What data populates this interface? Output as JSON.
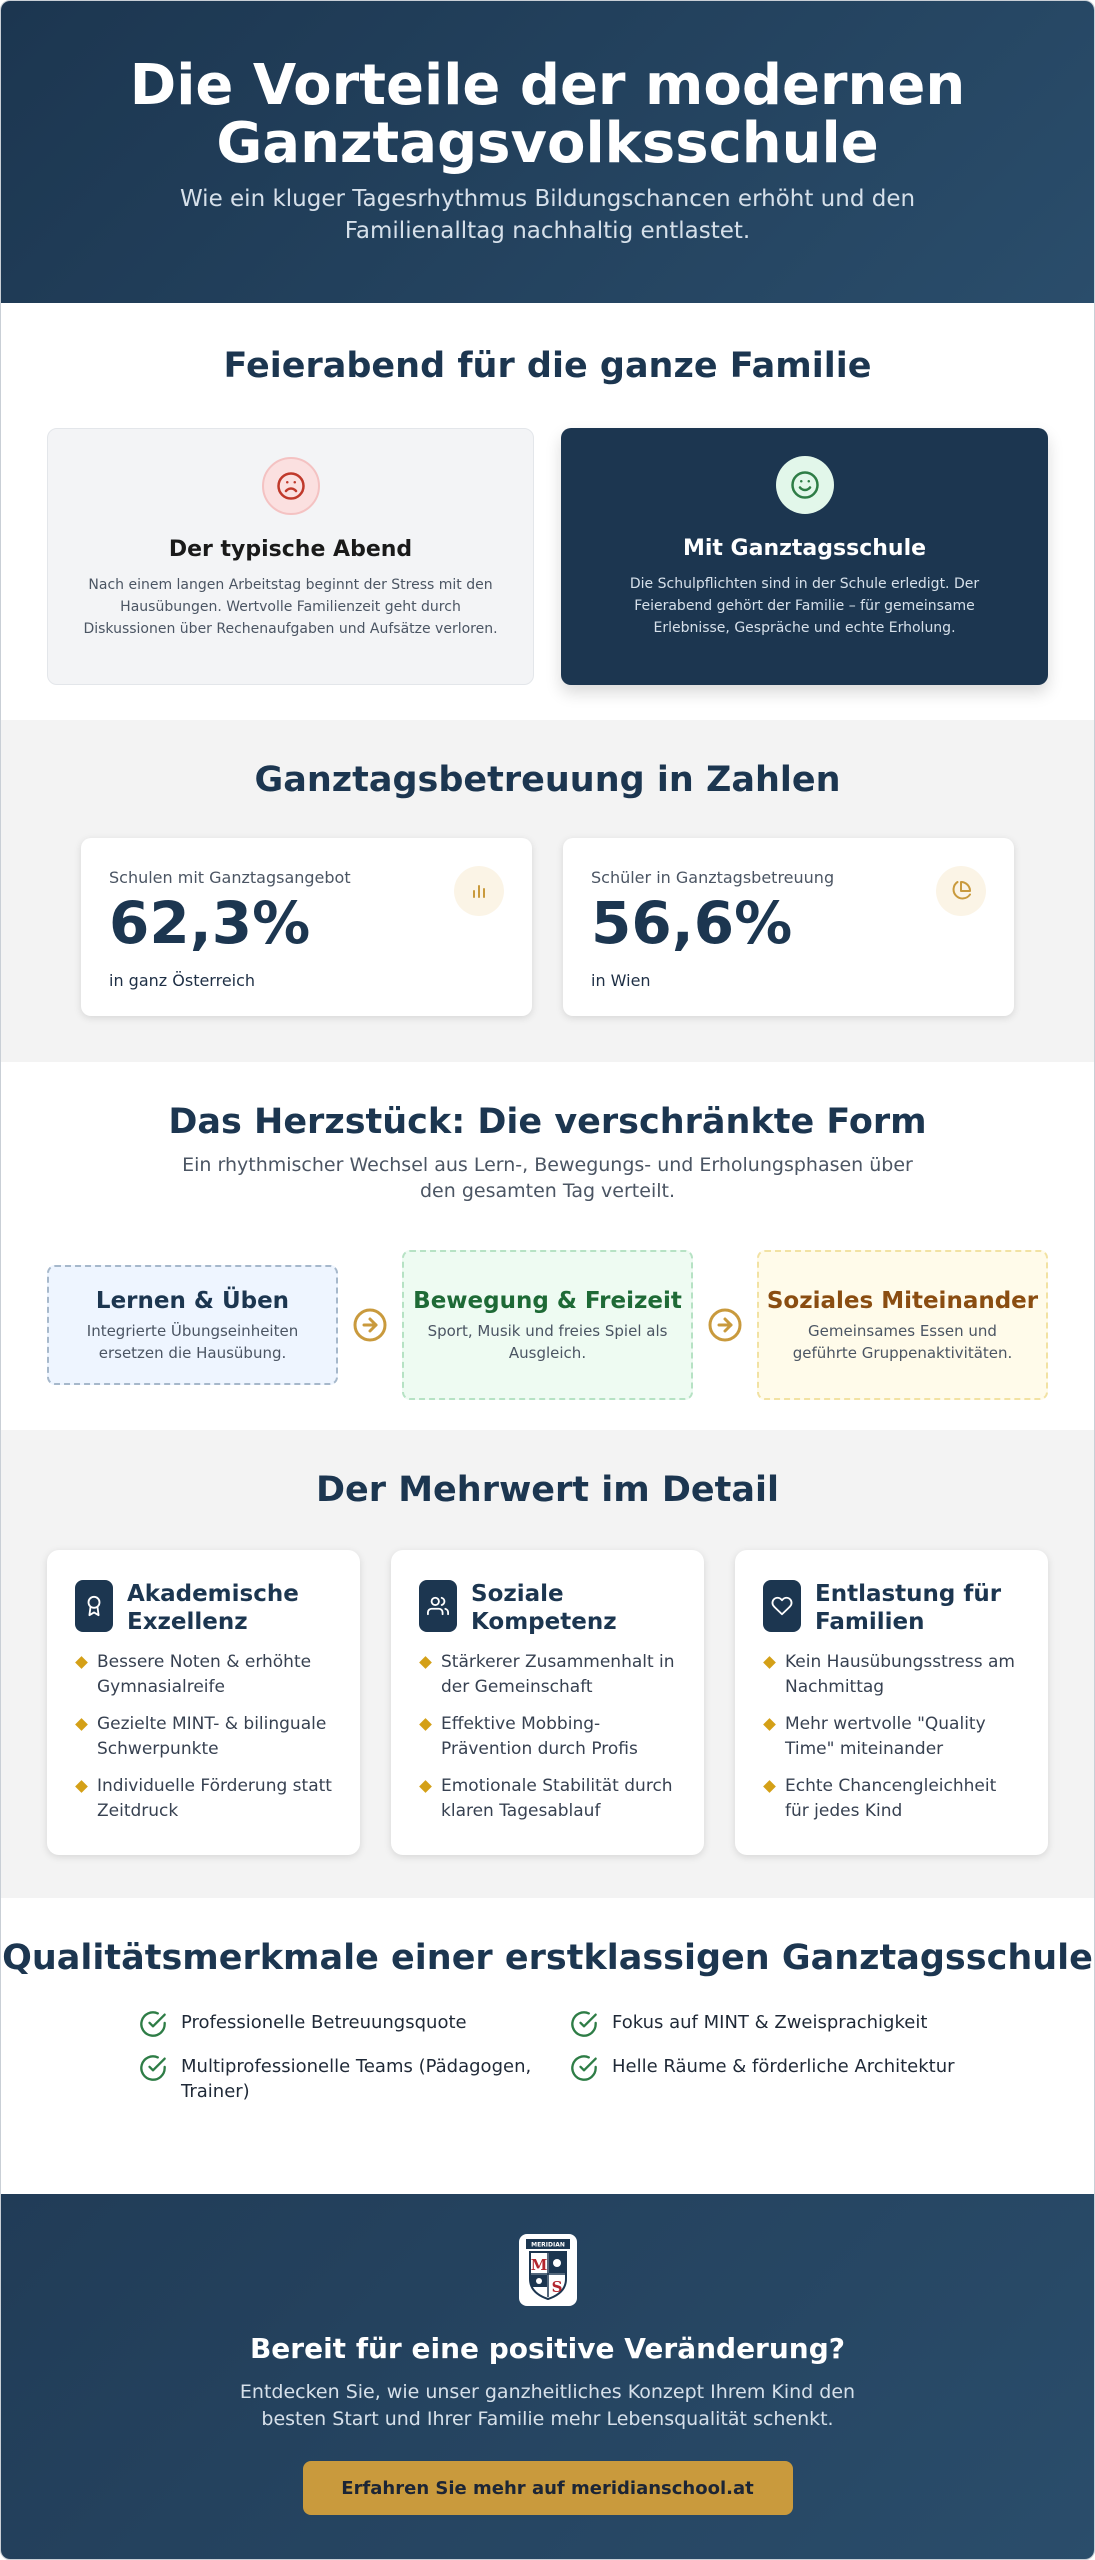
{
  "hero": {
    "title": "Die Vorteile der modernen Ganztagsvolksschule",
    "subtitle": "Wie ein kluger Tagesrhythmus Bildungschancen erhöht und den Familienalltag nachhaltig entlastet."
  },
  "family": {
    "title": "Feierabend für die ganze Familie",
    "cards": [
      {
        "icon": "sad-face-icon",
        "title": "Der typische Abend",
        "text": "Nach einem langen Arbeitstag beginnt der Stress mit den Hausübungen. Wertvolle Familienzeit geht durch Diskussionen über Rechenaufgaben und Aufsätze verloren."
      },
      {
        "icon": "happy-face-icon",
        "title": "Mit Ganztagsschule",
        "text": "Die Schulpflichten sind in der Schule erledigt. Der Feierabend gehört der Familie – für gemeinsame Erlebnisse, Gespräche und echte Erholung."
      }
    ]
  },
  "stats": {
    "title": "Ganztagsbetreuung in Zahlen",
    "cards": [
      {
        "label": "Schulen mit Ganztagsangebot",
        "value": "62,3%",
        "sub": "in ganz Österreich",
        "icon": "bar-chart-icon"
      },
      {
        "label": "Schüler in Ganztagsbetreuung",
        "value": "56,6%",
        "sub": "in Wien",
        "icon": "pie-chart-icon"
      }
    ]
  },
  "heart": {
    "title": "Das Herzstück: Die verschränkte Form",
    "lead": "Ein rhythmischer Wechsel aus Lern-, Bewegungs- und Erholungsphasen über den gesamten Tag verteilt.",
    "steps": [
      {
        "title": "Lernen & Üben",
        "text": "Integrierte Übungseinheiten ersetzen die Hausübung."
      },
      {
        "title": "Bewegung & Freizeit",
        "text": "Sport, Musik und freies Spiel als Ausgleich."
      },
      {
        "title": "Soziales Miteinander",
        "text": "Gemeinsames Essen und geführte Gruppenaktivitäten."
      }
    ]
  },
  "detail": {
    "title": "Der Mehrwert im Detail",
    "cards": [
      {
        "icon": "award-icon",
        "title": "Akademische Exzellenz",
        "items": [
          "Bessere Noten & erhöhte Gymnasialreife",
          "Gezielte MINT- & bilinguale Schwerpunkte",
          "Individuelle Förderung statt Zeitdruck"
        ]
      },
      {
        "icon": "users-icon",
        "title": "Soziale Kompetenz",
        "items": [
          "Stärkerer Zusammenhalt in der Gemeinschaft",
          "Effektive Mobbing-Prävention durch Profis",
          "Emotionale Stabilität durch klaren Tagesablauf"
        ]
      },
      {
        "icon": "heart-icon",
        "title": "Entlastung für Familien",
        "items": [
          "Kein Hausübungsstress am Nachmittag",
          "Mehr wertvolle \"Quality Time\" miteinander",
          "Echte Chancengleichheit für jedes Kind"
        ]
      }
    ]
  },
  "quality": {
    "title": "Qualitätsmerkmale einer erstklassigen Ganztagsschule",
    "items": [
      "Professionelle Betreuungsquote",
      "Fokus auf MINT & Zweisprachigkeit",
      "Multiprofessionelle Teams (Pädagogen, Trainer)",
      "Helle Räume & förderliche Architektur"
    ]
  },
  "cta": {
    "logo_text": "MERIDIAN",
    "logo_letters": "MS",
    "title": "Bereit für eine positive Veränderung?",
    "text": "Entdecken Sie, wie unser ganzheitliches Konzept Ihrem Kind den besten Start und Ihrer Familie mehr Lebensqualität schenkt.",
    "button": "Erfahren Sie mehr auf meridianschool.at"
  },
  "colors": {
    "navy": "#1c3650",
    "gold": "#c99a3d",
    "accent_diamond": "#d4a017",
    "check_green": "#2e7d46"
  }
}
